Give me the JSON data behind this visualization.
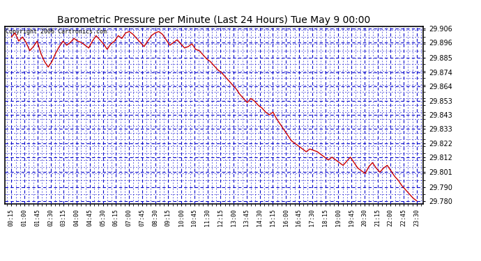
{
  "title": "Barometric Pressure per Minute (Last 24 Hours) Tue May 9 00:00",
  "copyright": "Copyright 2006 Cartronics.com",
  "background_color": "#ffffff",
  "plot_background": "#ffffff",
  "line_color": "#cc0000",
  "grid_color": "#0000cc",
  "text_color": "#000000",
  "ylim": [
    29.778,
    29.908
  ],
  "yticks": [
    29.78,
    29.79,
    29.801,
    29.812,
    29.822,
    29.833,
    29.843,
    29.853,
    29.864,
    29.874,
    29.885,
    29.896,
    29.906
  ],
  "xtick_labels": [
    "00:15",
    "01:00",
    "01:45",
    "02:30",
    "03:15",
    "04:00",
    "04:45",
    "05:30",
    "06:15",
    "07:00",
    "07:45",
    "08:30",
    "09:15",
    "10:00",
    "10:45",
    "11:30",
    "12:15",
    "13:00",
    "13:45",
    "14:30",
    "15:15",
    "16:00",
    "16:45",
    "17:30",
    "18:15",
    "19:00",
    "19:45",
    "20:30",
    "21:15",
    "22:00",
    "22:45",
    "23:30"
  ],
  "pressure_data": [
    29.9,
    29.903,
    29.897,
    29.9,
    29.896,
    29.89,
    29.893,
    29.897,
    29.888,
    29.882,
    29.878,
    29.882,
    29.888,
    29.893,
    29.897,
    29.894,
    29.896,
    29.899,
    29.897,
    29.896,
    29.894,
    29.892,
    29.897,
    29.901,
    29.898,
    29.895,
    29.891,
    29.895,
    29.897,
    29.901,
    29.899,
    29.903,
    29.904,
    29.902,
    29.899,
    29.896,
    29.893,
    29.897,
    29.901,
    29.903,
    29.904,
    29.902,
    29.898,
    29.894,
    29.896,
    29.898,
    29.895,
    29.892,
    29.893,
    29.895,
    29.891,
    29.89,
    29.887,
    29.884,
    29.882,
    29.879,
    29.876,
    29.874,
    29.871,
    29.868,
    29.865,
    29.862,
    29.858,
    29.855,
    29.852,
    29.855,
    29.853,
    29.85,
    29.848,
    29.845,
    29.843,
    29.845,
    29.84,
    29.836,
    29.832,
    29.828,
    29.824,
    29.822,
    29.82,
    29.818,
    29.816,
    29.818,
    29.817,
    29.816,
    29.814,
    29.812,
    29.81,
    29.812,
    29.81,
    29.808,
    29.806,
    29.809,
    29.812,
    29.808,
    29.804,
    29.802,
    29.8,
    29.805,
    29.808,
    29.804,
    29.801,
    29.804,
    29.806,
    29.802,
    29.798,
    29.795,
    29.791,
    29.788,
    29.785,
    29.782,
    29.78
  ]
}
